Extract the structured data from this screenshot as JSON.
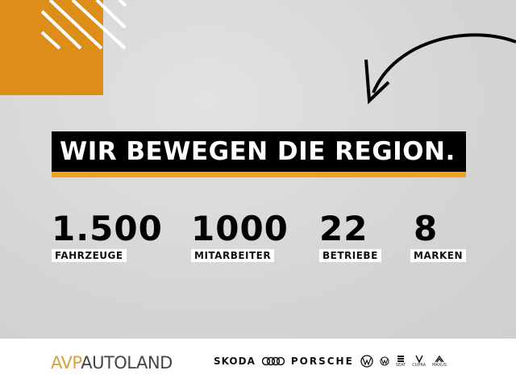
{
  "headline": "WIR BEWEGEN DIE REGION.",
  "stats": [
    {
      "value": "1.500",
      "label": "FAHRZEUGE"
    },
    {
      "value": "1000",
      "label": "MITARBEITER"
    },
    {
      "value": "22",
      "label": "BETRIEBE"
    },
    {
      "value": "8",
      "label": "MARKEN"
    }
  ],
  "footer": {
    "logo_a": "AVP",
    "logo_b": "AUTOLAND",
    "brands": [
      "SKODA",
      "PORSCHE",
      "SEAT",
      "CUPRA",
      "MAXUS"
    ]
  },
  "colors": {
    "accent": "#dc8e18",
    "bar": "#f2a01e"
  }
}
